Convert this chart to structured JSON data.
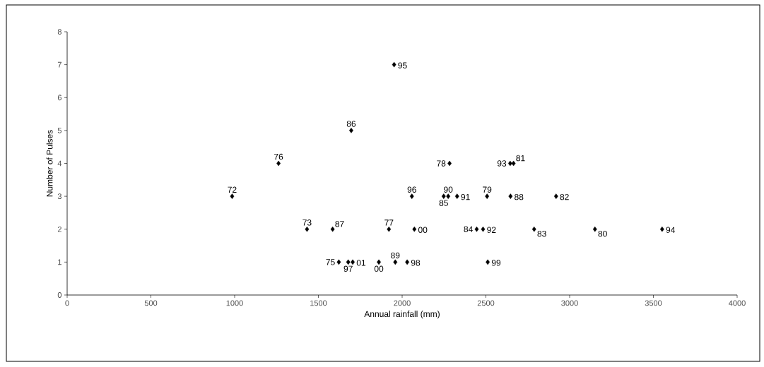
{
  "chart_data": {
    "type": "scatter",
    "xlabel": "Annual rainfall (mm)",
    "ylabel": "Number of Pulses",
    "x": [
      985,
      1262,
      1432,
      1585,
      1622,
      1678,
      1705,
      1696,
      1861,
      1921,
      1952,
      1959,
      2030,
      2058,
      2073,
      2248,
      2275,
      2283,
      2328,
      2445,
      2483,
      2507,
      2511,
      2645,
      2665,
      2647,
      2788,
      2919,
      3151,
      3552
    ],
    "series": [
      {
        "color": "#000000",
        "values": [
          3,
          4,
          2,
          2,
          1,
          1,
          1,
          5,
          1,
          2,
          7,
          1,
          1,
          3,
          2,
          3,
          3,
          4,
          3,
          2,
          2,
          3,
          1,
          4,
          4,
          3,
          2,
          3,
          2,
          2
        ]
      }
    ],
    "xlim": [
      0,
      4000
    ],
    "xticks": [
      0,
      500,
      1000,
      1500,
      2000,
      2500,
      3000,
      3500,
      4000
    ],
    "ylim": [
      0,
      8
    ],
    "yticks": [
      0,
      1,
      2,
      3,
      4,
      5,
      6,
      7,
      8
    ],
    "grid": false,
    "marker": "diamond",
    "annotations": [
      {
        "text": "72",
        "x": 985,
        "y": 3
      },
      {
        "text": "76",
        "x": 1262,
        "y": 4
      },
      {
        "text": "73",
        "x": 1432,
        "y": 2
      },
      {
        "text": "87",
        "x": 1585,
        "y": 2
      },
      {
        "text": "75",
        "x": 1622,
        "y": 1
      },
      {
        "text": "97",
        "x": 1678,
        "y": 1
      },
      {
        "text": "01",
        "x": 1705,
        "y": 1
      },
      {
        "text": "86",
        "x": 1696,
        "y": 5
      },
      {
        "text": "00",
        "x": 1861,
        "y": 1
      },
      {
        "text": "77",
        "x": 1921,
        "y": 2
      },
      {
        "text": "95",
        "x": 1952,
        "y": 7
      },
      {
        "text": "89",
        "x": 1959,
        "y": 1
      },
      {
        "text": "98",
        "x": 2030,
        "y": 1
      },
      {
        "text": "96",
        "x": 2058,
        "y": 3
      },
      {
        "text": "00",
        "x": 2073,
        "y": 2
      },
      {
        "text": "85",
        "x": 2248,
        "y": 3
      },
      {
        "text": "90",
        "x": 2275,
        "y": 3
      },
      {
        "text": "78",
        "x": 2283,
        "y": 4
      },
      {
        "text": "91",
        "x": 2328,
        "y": 3
      },
      {
        "text": "84",
        "x": 2445,
        "y": 2
      },
      {
        "text": "92",
        "x": 2483,
        "y": 2
      },
      {
        "text": "79",
        "x": 2507,
        "y": 3
      },
      {
        "text": "99",
        "x": 2511,
        "y": 1
      },
      {
        "text": "93",
        "x": 2645,
        "y": 4
      },
      {
        "text": "81",
        "x": 2665,
        "y": 4
      },
      {
        "text": "88",
        "x": 2647,
        "y": 3
      },
      {
        "text": "83",
        "x": 2788,
        "y": 2
      },
      {
        "text": "82",
        "x": 2919,
        "y": 3
      },
      {
        "text": "80",
        "x": 3151,
        "y": 2
      },
      {
        "text": "94",
        "x": 3552,
        "y": 2
      }
    ]
  }
}
